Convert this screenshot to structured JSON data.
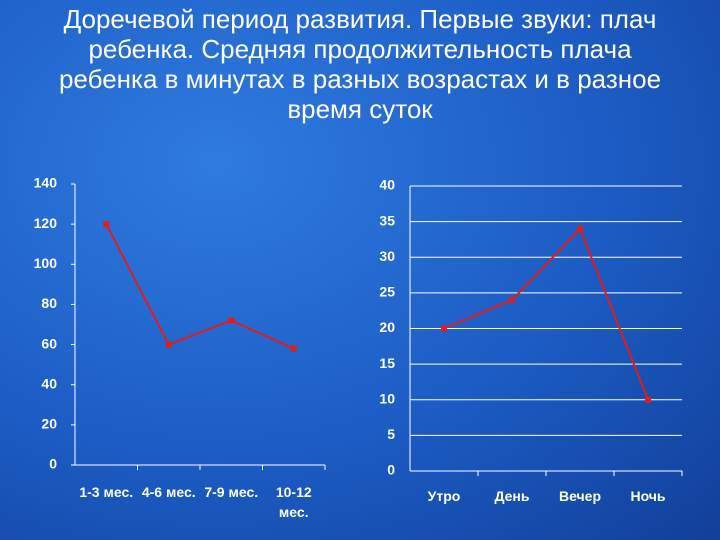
{
  "title": "Доречевой период развития. Первые звуки: плач ребенка. Средняя продолжительность плача ребенка в минутах в разных возрастах и в разное время суток",
  "chart_data": [
    {
      "type": "line",
      "categories": [
        "1-3 мес.",
        "4-6 мес.",
        "7-9 мес.",
        "10-12 мес."
      ],
      "values": [
        120,
        60,
        72,
        58
      ],
      "color": "#e31b1b",
      "ylim": [
        0,
        140
      ],
      "yticks": [
        0,
        20,
        40,
        60,
        80,
        100,
        120,
        140
      ],
      "grid": false
    },
    {
      "type": "line",
      "categories": [
        "Утро",
        "День",
        "Вечер",
        "Ночь"
      ],
      "values": [
        20,
        24,
        34,
        10
      ],
      "color": "#e31b1b",
      "ylim": [
        0,
        40
      ],
      "yticks": [
        0,
        5,
        10,
        15,
        20,
        25,
        30,
        35,
        40
      ],
      "grid": true
    }
  ]
}
